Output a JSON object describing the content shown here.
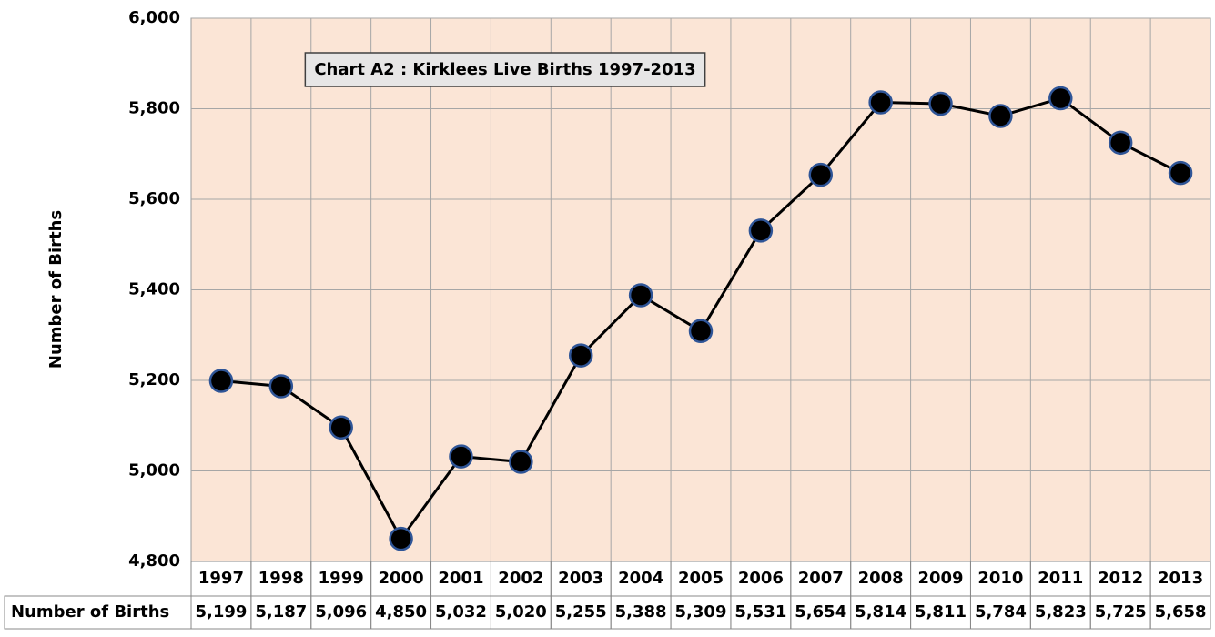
{
  "chart_data": {
    "type": "line",
    "title": "Chart A2 : Kirklees Live Births 1997-2013",
    "y_label": "Number of Births",
    "categories": [
      "1997",
      "1998",
      "1999",
      "2000",
      "2001",
      "2002",
      "2003",
      "2004",
      "2005",
      "2006",
      "2007",
      "2008",
      "2009",
      "2010",
      "2011",
      "2012",
      "2013"
    ],
    "series": [
      {
        "name": "Number of Births",
        "color": "#000000",
        "marker_edge": "#2f5597",
        "values": [
          5199,
          5187,
          5096,
          4850,
          5032,
          5020,
          5255,
          5388,
          5309,
          5531,
          5654,
          5814,
          5811,
          5784,
          5823,
          5725,
          5658
        ],
        "value_labels": [
          "5,199",
          "5,187",
          "5,096",
          "4,850",
          "5,032",
          "5,020",
          "5,255",
          "5,388",
          "5,309",
          "5,531",
          "5,654",
          "5,814",
          "5,811",
          "5,784",
          "5,823",
          "5,725",
          "5,658"
        ]
      }
    ],
    "ylim": [
      4800,
      6000
    ],
    "yticks": [
      {
        "value": 4800,
        "label": "4,800"
      },
      {
        "value": 5000,
        "label": "5,000"
      },
      {
        "value": 5200,
        "label": "5,200"
      },
      {
        "value": 5400,
        "label": "5,400"
      },
      {
        "value": 5600,
        "label": "5,600"
      },
      {
        "value": 5800,
        "label": "5,800"
      },
      {
        "value": 6000,
        "label": "6,000"
      }
    ],
    "grid": true,
    "plot_background": "#fbe5d6"
  }
}
